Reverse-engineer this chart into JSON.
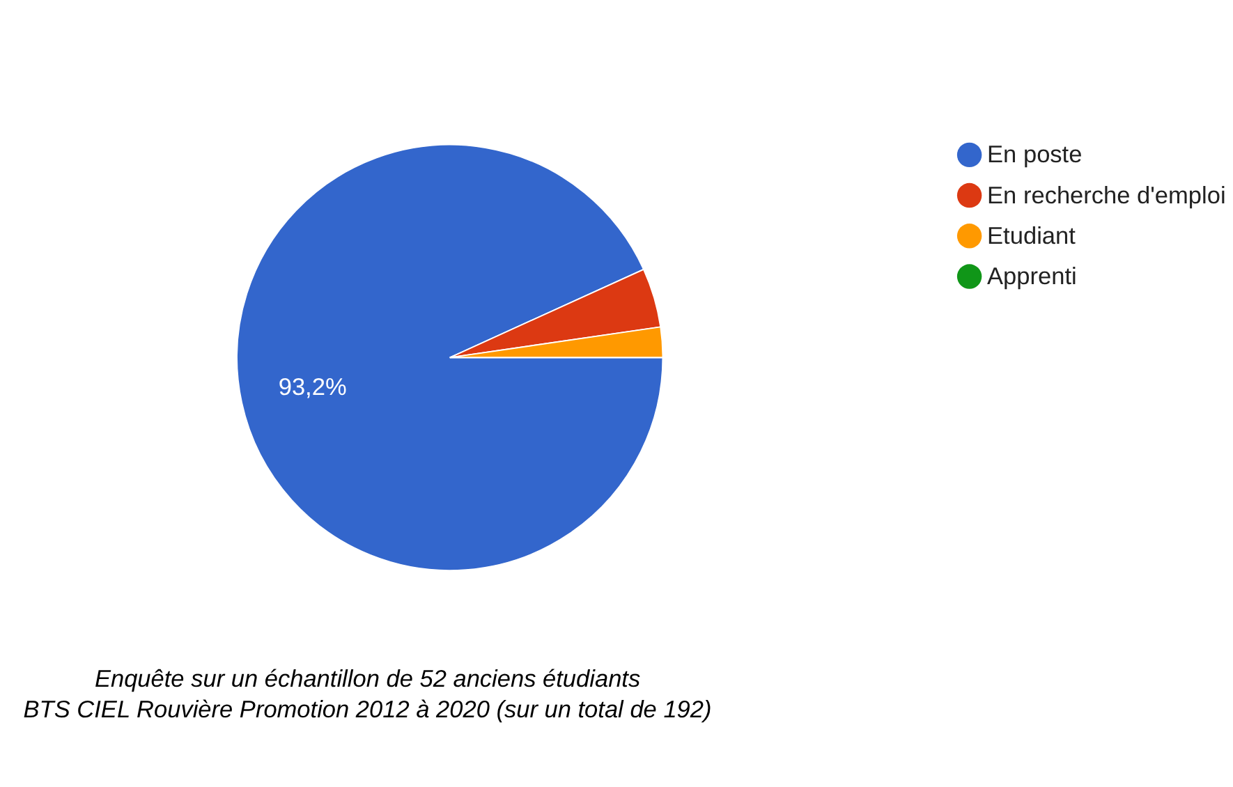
{
  "chart_data": {
    "type": "pie",
    "categories": [
      "En poste",
      "En recherche d'emploi",
      "Etudiant",
      "Apprenti"
    ],
    "values": [
      93.2,
      4.5,
      2.3,
      0
    ],
    "colors": [
      "#3366cc",
      "#dc3912",
      "#ff9900",
      "#109618"
    ],
    "value_labels": [
      "93,2%",
      null,
      null,
      null
    ],
    "legend": "top right",
    "annotations": [
      "Enquête sur un échantillon de 52 anciens étudiants",
      "BTS CIEL Rouvière Promotion 2012 à 2020 (sur un total de 192)"
    ]
  }
}
